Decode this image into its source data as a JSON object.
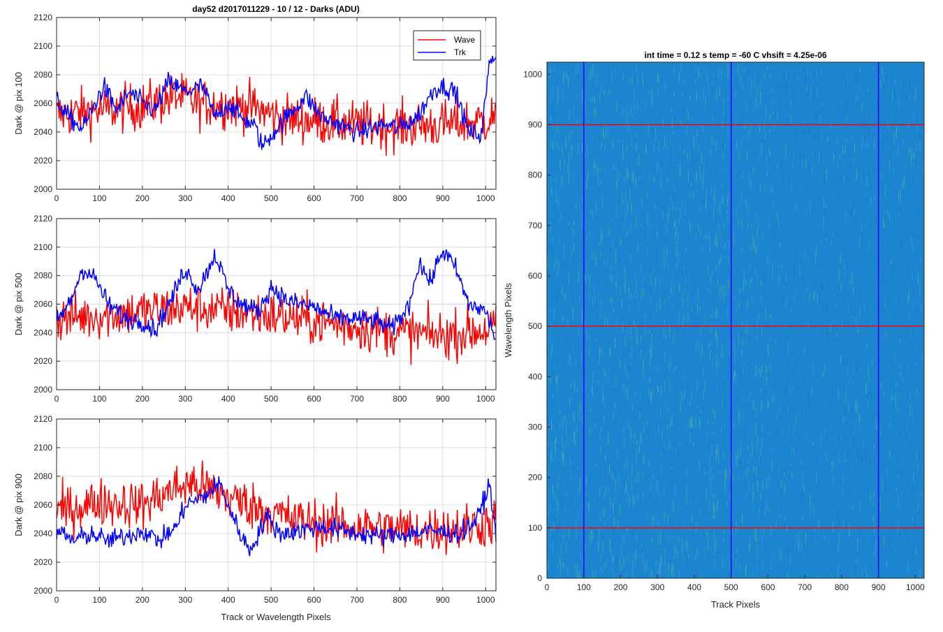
{
  "figure": {
    "title": "day52 d2017011229 - 10 / 12 - Darks (ADU)",
    "shared_xlabel": "Track or Wavelength Pixels"
  },
  "chart_data": [
    {
      "type": "line",
      "ylabel": "Dark @ pix 100",
      "xlim": [
        0,
        1024
      ],
      "ylim": [
        2000,
        2120
      ],
      "xticks": [
        0,
        100,
        200,
        300,
        400,
        500,
        600,
        700,
        800,
        900,
        1000
      ],
      "yticks": [
        2000,
        2020,
        2040,
        2060,
        2080,
        2100,
        2120
      ],
      "grid": true,
      "legend": {
        "placement": "top-right",
        "entries": [
          "Wave",
          "Trk"
        ]
      },
      "series": [
        {
          "name": "Wave",
          "color": "#ff0000",
          "noise": 12,
          "anchors": [
            [
              0,
              2052
            ],
            [
              100,
              2055
            ],
            [
              200,
              2058
            ],
            [
              280,
              2065
            ],
            [
              330,
              2060
            ],
            [
              450,
              2058
            ],
            [
              520,
              2050
            ],
            [
              600,
              2048
            ],
            [
              700,
              2045
            ],
            [
              800,
              2044
            ],
            [
              900,
              2045
            ],
            [
              1000,
              2048
            ],
            [
              1024,
              2052
            ]
          ]
        },
        {
          "name": "Trk",
          "color": "#0000ff",
          "noise": 5,
          "anchors": [
            [
              0,
              2062
            ],
            [
              30,
              2050
            ],
            [
              60,
              2042
            ],
            [
              90,
              2060
            ],
            [
              110,
              2072
            ],
            [
              140,
              2055
            ],
            [
              170,
              2068
            ],
            [
              200,
              2060
            ],
            [
              230,
              2055
            ],
            [
              260,
              2075
            ],
            [
              300,
              2068
            ],
            [
              340,
              2072
            ],
            [
              370,
              2050
            ],
            [
              400,
              2060
            ],
            [
              430,
              2050
            ],
            [
              460,
              2045
            ],
            [
              480,
              2030
            ],
            [
              520,
              2045
            ],
            [
              580,
              2065
            ],
            [
              620,
              2050
            ],
            [
              700,
              2040
            ],
            [
              760,
              2045
            ],
            [
              800,
              2043
            ],
            [
              840,
              2050
            ],
            [
              880,
              2070
            ],
            [
              900,
              2072
            ],
            [
              930,
              2068
            ],
            [
              960,
              2040
            ],
            [
              990,
              2038
            ],
            [
              1010,
              2090
            ],
            [
              1024,
              2095
            ]
          ]
        }
      ]
    },
    {
      "type": "line",
      "ylabel": "Dark @ pix 500",
      "xlim": [
        0,
        1024
      ],
      "ylim": [
        2000,
        2120
      ],
      "xticks": [
        0,
        100,
        200,
        300,
        400,
        500,
        600,
        700,
        800,
        900,
        1000
      ],
      "yticks": [
        2000,
        2020,
        2040,
        2060,
        2080,
        2100,
        2120
      ],
      "grid": true,
      "series": [
        {
          "name": "Wave",
          "color": "#ff0000",
          "noise": 12,
          "anchors": [
            [
              0,
              2050
            ],
            [
              100,
              2052
            ],
            [
              200,
              2055
            ],
            [
              300,
              2058
            ],
            [
              400,
              2055
            ],
            [
              500,
              2052
            ],
            [
              600,
              2048
            ],
            [
              700,
              2044
            ],
            [
              800,
              2040
            ],
            [
              900,
              2038
            ],
            [
              1000,
              2042
            ],
            [
              1024,
              2045
            ]
          ]
        },
        {
          "name": "Trk",
          "color": "#0000ff",
          "noise": 5,
          "anchors": [
            [
              0,
              2048
            ],
            [
              30,
              2060
            ],
            [
              60,
              2085
            ],
            [
              90,
              2078
            ],
            [
              120,
              2060
            ],
            [
              160,
              2050
            ],
            [
              200,
              2048
            ],
            [
              230,
              2042
            ],
            [
              270,
              2065
            ],
            [
              300,
              2085
            ],
            [
              330,
              2070
            ],
            [
              370,
              2095
            ],
            [
              400,
              2070
            ],
            [
              430,
              2060
            ],
            [
              470,
              2055
            ],
            [
              500,
              2072
            ],
            [
              540,
              2062
            ],
            [
              600,
              2058
            ],
            [
              650,
              2050
            ],
            [
              700,
              2050
            ],
            [
              750,
              2048
            ],
            [
              780,
              2042
            ],
            [
              820,
              2058
            ],
            [
              845,
              2090
            ],
            [
              870,
              2075
            ],
            [
              900,
              2098
            ],
            [
              930,
              2085
            ],
            [
              960,
              2060
            ],
            [
              1000,
              2055
            ],
            [
              1024,
              2035
            ]
          ]
        }
      ]
    },
    {
      "type": "line",
      "ylabel": "Dark @ pix 900",
      "xlabel": "Track or Wavelength Pixels",
      "xlim": [
        0,
        1024
      ],
      "ylim": [
        2000,
        2120
      ],
      "xticks": [
        0,
        100,
        200,
        300,
        400,
        500,
        600,
        700,
        800,
        900,
        1000
      ],
      "yticks": [
        2000,
        2020,
        2040,
        2060,
        2080,
        2100,
        2120
      ],
      "grid": true,
      "series": [
        {
          "name": "Wave",
          "color": "#ff0000",
          "noise": 12,
          "anchors": [
            [
              0,
              2055
            ],
            [
              100,
              2062
            ],
            [
              200,
              2060
            ],
            [
              280,
              2072
            ],
            [
              320,
              2075
            ],
            [
              380,
              2068
            ],
            [
              450,
              2060
            ],
            [
              550,
              2050
            ],
            [
              650,
              2046
            ],
            [
              750,
              2044
            ],
            [
              850,
              2042
            ],
            [
              950,
              2044
            ],
            [
              1024,
              2048
            ]
          ]
        },
        {
          "name": "Trk",
          "color": "#0000ff",
          "noise": 5,
          "anchors": [
            [
              0,
              2042
            ],
            [
              40,
              2035
            ],
            [
              80,
              2040
            ],
            [
              120,
              2035
            ],
            [
              160,
              2038
            ],
            [
              200,
              2042
            ],
            [
              240,
              2035
            ],
            [
              280,
              2045
            ],
            [
              300,
              2060
            ],
            [
              340,
              2065
            ],
            [
              380,
              2075
            ],
            [
              420,
              2045
            ],
            [
              450,
              2028
            ],
            [
              490,
              2052
            ],
            [
              520,
              2040
            ],
            [
              560,
              2042
            ],
            [
              620,
              2045
            ],
            [
              700,
              2040
            ],
            [
              760,
              2038
            ],
            [
              820,
              2040
            ],
            [
              870,
              2042
            ],
            [
              940,
              2040
            ],
            [
              980,
              2050
            ],
            [
              1010,
              2075
            ],
            [
              1024,
              2035
            ]
          ]
        }
      ]
    },
    {
      "type": "heatmap",
      "title": "int time = 0.12 s    temp = -60 C    vhsift = 4.25e-06",
      "xlabel": "Track Pixels",
      "ylabel": "Wavelength Pixels",
      "xlim": [
        0,
        1024
      ],
      "ylim": [
        0,
        1024
      ],
      "xticks": [
        0,
        100,
        200,
        300,
        400,
        500,
        600,
        700,
        800,
        900,
        1000
      ],
      "yticks": [
        0,
        100,
        200,
        300,
        400,
        500,
        600,
        700,
        800,
        900,
        1000
      ],
      "colormap": "parula",
      "base_color": "#1b86cf",
      "highlight_color": "#6cbf84",
      "vertical_lines": {
        "color": "#0000ff",
        "x": [
          100,
          500,
          900
        ]
      },
      "horizontal_lines": {
        "color": "#ff0000",
        "y": [
          100,
          500,
          900
        ]
      }
    }
  ]
}
